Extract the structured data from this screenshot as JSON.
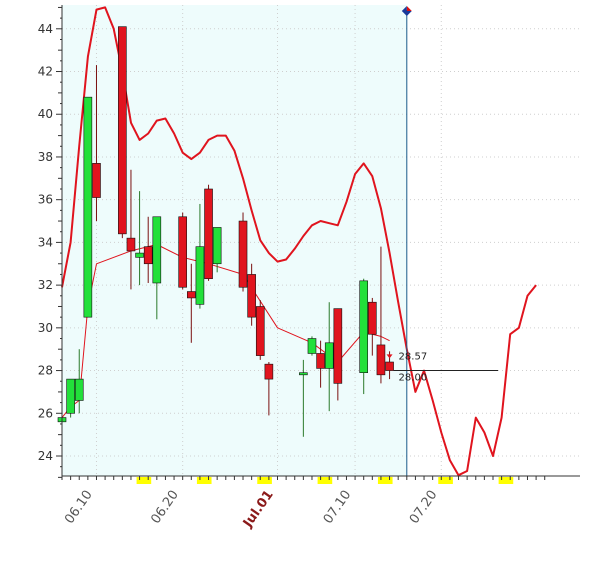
{
  "chart_data": {
    "type": "candlestick",
    "ylim": [
      23,
      45
    ],
    "y_ticks": [
      24,
      26,
      28,
      30,
      32,
      34,
      36,
      38,
      40,
      42,
      44
    ],
    "x_tick_labels": [
      {
        "label": "06.10",
        "day": 4,
        "highlight": false
      },
      {
        "label": "06.20",
        "day": 14,
        "highlight": false
      },
      {
        "label": "Jul.01",
        "day": 25,
        "highlight": true
      },
      {
        "label": "07.10",
        "day": 34,
        "highlight": false
      },
      {
        "label": "07.20",
        "day": 44,
        "highlight": false
      }
    ],
    "weekend_day_pairs": [
      [
        9,
        10
      ],
      [
        16,
        17
      ],
      [
        23,
        24
      ],
      [
        30,
        31
      ],
      [
        37,
        38
      ],
      [
        44,
        45
      ],
      [
        51,
        52
      ]
    ],
    "x_range": [
      0,
      56
    ],
    "cursor_day": 40,
    "candles": [
      {
        "day": 0,
        "open": 25.6,
        "high": 26.0,
        "low": 24.6,
        "close": 25.8
      },
      {
        "day": 1,
        "open": 26.0,
        "high": 27.6,
        "low": 25.8,
        "close": 27.6
      },
      {
        "day": 2,
        "open": 26.6,
        "high": 29.0,
        "low": 26.0,
        "close": 27.6
      },
      {
        "day": 3,
        "open": 30.5,
        "high": 40.8,
        "low": 30.5,
        "close": 40.8
      },
      {
        "day": 4,
        "open": 37.7,
        "high": 42.3,
        "low": 35.0,
        "close": 36.1
      },
      {
        "day": 7,
        "open": 44.1,
        "high": 44.1,
        "low": 34.2,
        "close": 34.4
      },
      {
        "day": 8,
        "open": 34.2,
        "high": 37.4,
        "low": 31.8,
        "close": 33.6
      },
      {
        "day": 9,
        "open": 33.3,
        "high": 36.4,
        "low": 32.0,
        "close": 33.5
      },
      {
        "day": 10,
        "open": 33.8,
        "high": 35.2,
        "low": 32.1,
        "close": 33.0
      },
      {
        "day": 11,
        "open": 32.1,
        "high": 35.2,
        "low": 30.4,
        "close": 35.2
      },
      {
        "day": 14,
        "open": 35.2,
        "high": 35.4,
        "low": 31.8,
        "close": 31.9
      },
      {
        "day": 15,
        "open": 31.7,
        "high": 33.0,
        "low": 29.3,
        "close": 31.4
      },
      {
        "day": 16,
        "open": 31.1,
        "high": 35.8,
        "low": 30.9,
        "close": 33.8
      },
      {
        "day": 17,
        "open": 36.5,
        "high": 36.7,
        "low": 32.2,
        "close": 32.3
      },
      {
        "day": 18,
        "open": 33.0,
        "high": 34.7,
        "low": 32.6,
        "close": 34.7
      },
      {
        "day": 21,
        "open": 35.0,
        "high": 35.4,
        "low": 31.7,
        "close": 31.9
      },
      {
        "day": 22,
        "open": 32.5,
        "high": 33.0,
        "low": 30.1,
        "close": 30.5
      },
      {
        "day": 23,
        "open": 31.0,
        "high": 31.3,
        "low": 28.5,
        "close": 28.7
      },
      {
        "day": 24,
        "open": 28.3,
        "high": 28.4,
        "low": 25.9,
        "close": 27.6
      },
      {
        "day": 28,
        "open": 27.8,
        "high": 28.5,
        "low": 24.9,
        "close": 27.9
      },
      {
        "day": 29,
        "open": 28.8,
        "high": 29.6,
        "low": 28.7,
        "close": 29.5
      },
      {
        "day": 30,
        "open": 28.8,
        "high": 29.4,
        "low": 27.2,
        "close": 28.1
      },
      {
        "day": 31,
        "open": 28.1,
        "high": 31.2,
        "low": 26.1,
        "close": 29.3
      },
      {
        "day": 32,
        "open": 30.9,
        "high": 30.9,
        "low": 26.6,
        "close": 27.4
      },
      {
        "day": 35,
        "open": 27.9,
        "high": 32.3,
        "low": 26.9,
        "close": 32.2
      },
      {
        "day": 36,
        "open": 31.2,
        "high": 31.4,
        "low": 28.7,
        "close": 29.7
      },
      {
        "day": 37,
        "open": 29.2,
        "high": 33.8,
        "low": 27.4,
        "close": 27.8
      },
      {
        "day": 38,
        "open": 28.4,
        "high": 28.9,
        "low": 27.6,
        "close": 28.0
      }
    ],
    "series": [
      {
        "type": "thin_line",
        "x": [
          0,
          1,
          2,
          3,
          4,
          8,
          11,
          14,
          17,
          21,
          25,
          29,
          32,
          35,
          37,
          38
        ],
        "y": [
          25.8,
          26.3,
          26.6,
          31.0,
          33.0,
          33.6,
          33.9,
          33.3,
          33.0,
          32.5,
          30.0,
          29.3,
          28.4,
          29.8,
          29.6,
          29.4
        ]
      },
      {
        "type": "thick_line",
        "x": [
          0,
          1,
          2,
          3,
          4,
          5,
          6,
          7,
          8,
          9,
          10,
          11,
          12,
          13,
          14,
          15,
          16,
          17,
          18,
          19,
          20,
          21,
          22,
          23,
          24,
          25,
          26,
          27,
          28,
          29,
          30,
          31,
          32,
          33,
          34,
          35,
          36,
          37,
          38,
          39,
          40,
          41,
          42,
          43,
          44,
          45,
          46,
          47,
          48,
          49,
          50,
          51,
          52,
          53,
          54,
          55
        ],
        "y": [
          31.9,
          34.0,
          38.5,
          42.7,
          44.9,
          45.0,
          44.0,
          42.0,
          39.6,
          38.8,
          39.1,
          39.7,
          39.8,
          39.1,
          38.2,
          37.9,
          38.2,
          38.8,
          39.0,
          39.0,
          38.3,
          37.0,
          35.5,
          34.1,
          33.5,
          33.1,
          33.2,
          33.7,
          34.3,
          34.8,
          35.0,
          34.9,
          34.8,
          35.9,
          37.2,
          37.7,
          37.1,
          35.6,
          33.5,
          31.2,
          29.0,
          27.0,
          28.0,
          26.6,
          25.1,
          23.8,
          23.1,
          23.3,
          25.8,
          25.1,
          24.0,
          25.8,
          29.7,
          30.0,
          31.5,
          32.0
        ]
      }
    ],
    "annotations": [
      {
        "label": "28.57",
        "day": 38,
        "value": 28.57
      },
      {
        "label": "28.00",
        "day": 38,
        "value": 28.0
      }
    ],
    "colors": {
      "up_candle": "#22e03a",
      "down_candle": "#e0141e",
      "candle_outline": "#111111",
      "line": "#e0141e",
      "shade": "#eefcfc",
      "cursor": "#1a5a8a",
      "weekend": "#ffff00",
      "marker_top": "#e01010",
      "marker_bottom": "#1a3a9a"
    }
  }
}
